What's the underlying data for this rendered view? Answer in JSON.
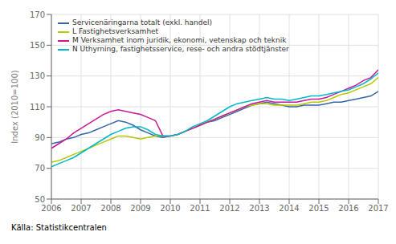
{
  "chart_data": {
    "type": "line",
    "ylabel": "Index (2010=100)",
    "annotations": [
      "Källa: Statistikcentralen"
    ],
    "x": [
      2006.0,
      2006.25,
      2006.5,
      2006.75,
      2007.0,
      2007.25,
      2007.5,
      2007.75,
      2008.0,
      2008.25,
      2008.5,
      2008.75,
      2009.0,
      2009.25,
      2009.5,
      2009.75,
      2010.0,
      2010.25,
      2010.5,
      2010.75,
      2011.0,
      2011.25,
      2011.5,
      2011.75,
      2012.0,
      2012.25,
      2012.5,
      2012.75,
      2013.0,
      2013.25,
      2013.5,
      2013.75,
      2014.0,
      2014.25,
      2014.5,
      2014.75,
      2015.0,
      2015.25,
      2015.5,
      2015.75,
      2016.0,
      2016.25,
      2016.5,
      2016.75,
      2017.0
    ],
    "series": [
      {
        "name": "Servicenäringarna totalt (exkl. handel)",
        "color": "#3665a6",
        "values": [
          86,
          87,
          89,
          90,
          92,
          93,
          95,
          97,
          99,
          101,
          100,
          98,
          95,
          93,
          91,
          90,
          91,
          92,
          94,
          96,
          98,
          100,
          101,
          103,
          105,
          107,
          109,
          111,
          112,
          113,
          112,
          111,
          110,
          110,
          111,
          111,
          111,
          112,
          113,
          113,
          114,
          115,
          116,
          117,
          120
        ]
      },
      {
        "name": "L Fastighetsverksamhet",
        "color": "#b8c800",
        "values": [
          74,
          75,
          77,
          79,
          81,
          83,
          85,
          87,
          89,
          91,
          91,
          90,
          89,
          90,
          91,
          91,
          91,
          92,
          94,
          96,
          98,
          100,
          102,
          104,
          106,
          108,
          110,
          111,
          112,
          112,
          111,
          111,
          111,
          111,
          112,
          113,
          113,
          114,
          116,
          118,
          119,
          121,
          123,
          125,
          129
        ]
      },
      {
        "name": "M Verksamhet inom juridik, ekonomi, vetenskap och teknik",
        "color": "#c8189a",
        "values": [
          83,
          86,
          89,
          93,
          96,
          99,
          102,
          105,
          107,
          108,
          107,
          106,
          105,
          103,
          101,
          91,
          91,
          92,
          94,
          96,
          98,
          100,
          102,
          104,
          106,
          108,
          110,
          112,
          113,
          114,
          113,
          113,
          113,
          113,
          114,
          115,
          115,
          116,
          118,
          120,
          122,
          124,
          127,
          129,
          134
        ]
      },
      {
        "name": "N Uthyrning, fastighetsservice, rese- och andra stödtjänster",
        "color": "#00b8c8",
        "values": [
          71,
          73,
          75,
          77,
          80,
          83,
          86,
          89,
          92,
          94,
          96,
          97,
          97,
          95,
          92,
          91,
          91,
          92,
          94,
          97,
          99,
          101,
          104,
          107,
          110,
          112,
          113,
          114,
          115,
          116,
          115,
          115,
          114,
          115,
          116,
          117,
          117,
          118,
          119,
          120,
          121,
          123,
          125,
          128,
          132
        ]
      }
    ],
    "xlim": [
      2006.0,
      2017.0
    ],
    "xticks": [
      2006,
      2007,
      2008,
      2009,
      2010,
      2011,
      2012,
      2013,
      2014,
      2015,
      2016,
      2017
    ],
    "ylim": [
      50,
      170
    ],
    "yticks": [
      50,
      70,
      90,
      110,
      130,
      150,
      170
    ],
    "grid": true,
    "legend": "upper left"
  }
}
